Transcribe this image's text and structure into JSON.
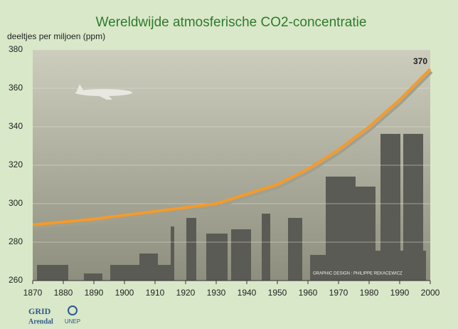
{
  "chart_data": {
    "type": "line",
    "title": "Wereldwijde atmosferische CO2-concentratie",
    "y_label": "deeltjes per miljoen (ppm)",
    "x": [
      1870,
      1880,
      1890,
      1900,
      1910,
      1920,
      1930,
      1940,
      1950,
      1960,
      1970,
      1980,
      1990,
      2000
    ],
    "series": [
      {
        "color": "#f59a2a",
        "values": [
          289,
          290.5,
          292,
          294,
          296,
          298,
          300,
          305,
          310,
          318,
          328,
          340,
          354,
          370
        ]
      }
    ],
    "xlim": [
      1870,
      2000
    ],
    "xticks": [
      1870,
      1880,
      1890,
      1900,
      1910,
      1920,
      1930,
      1940,
      1950,
      1960,
      1970,
      1980,
      1990,
      2000
    ],
    "ylim": [
      260,
      380
    ],
    "yticks": [
      260,
      280,
      300,
      320,
      340,
      360,
      380
    ],
    "grid": true
  },
  "credit": "GRAPHIC DESIGN : PHILIPPE REKACEWICZ",
  "logos": [
    "GRID",
    "Arendal",
    "UNEP"
  ]
}
